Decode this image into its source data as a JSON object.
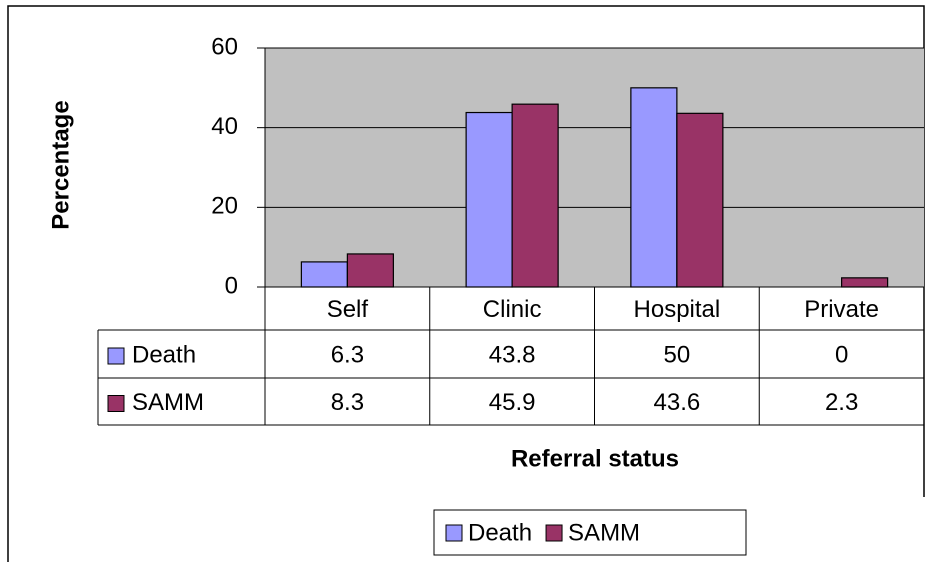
{
  "chart_data": {
    "type": "bar",
    "x_label": "Referral status",
    "y_label": "Percentage",
    "categories": [
      "Self",
      "Clinic",
      "Hospital",
      "Private"
    ],
    "series": [
      {
        "name": "Death",
        "color": "#9999ff",
        "values": [
          6.3,
          43.8,
          50,
          0
        ]
      },
      {
        "name": "SAMM",
        "color": "#993366",
        "values": [
          8.3,
          45.9,
          43.6,
          2.3
        ]
      }
    ],
    "ylim": [
      0,
      60
    ],
    "yticks": [
      0,
      20,
      40,
      60
    ],
    "grid": true,
    "legend": "bottom",
    "data_table": true
  }
}
